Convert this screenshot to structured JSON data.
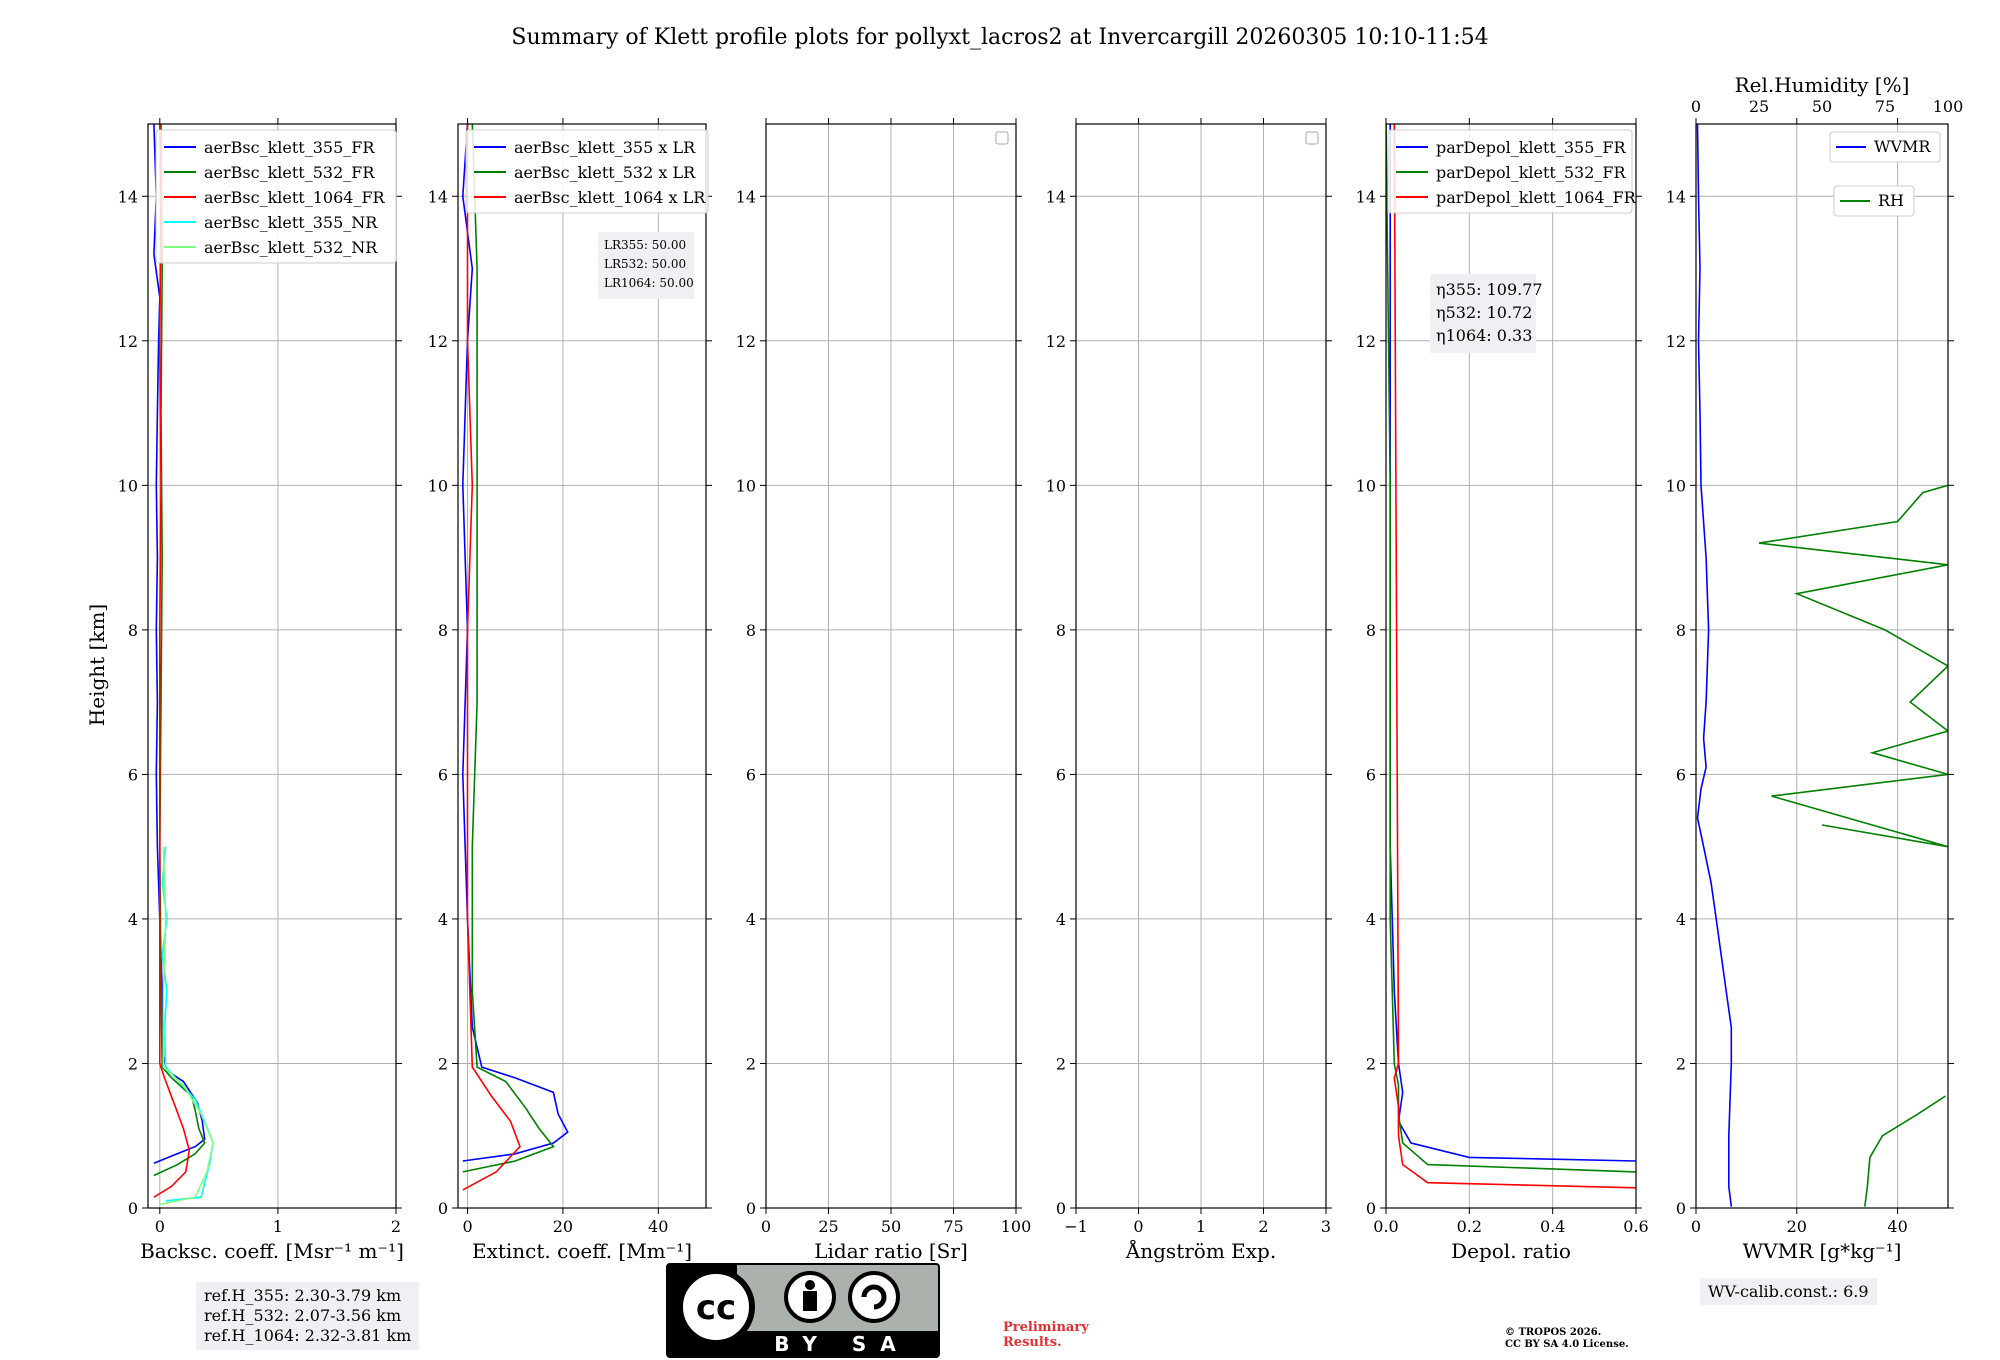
{
  "title": "Summary of Klett profile plots for pollyxt_lacros2 at Invercargill 20260305 10:10-11:54",
  "y_axis": {
    "label": "Height [km]",
    "range": [
      0,
      15
    ],
    "ticks": [
      "0",
      "2",
      "4",
      "6",
      "8",
      "10",
      "12",
      "14"
    ]
  },
  "chart_data": [
    {
      "type": "line",
      "xlabel": "Backsc. coeff. [Msr⁻¹ m⁻¹]",
      "xlim": [
        -0.1,
        2
      ],
      "xticks": [
        "0",
        "1",
        "2"
      ],
      "legend": [
        "aerBsc_klett_355_FR",
        "aerBsc_klett_532_FR",
        "aerBsc_klett_1064_FR",
        "aerBsc_klett_355_NR",
        "aerBsc_klett_532_NR"
      ],
      "series": [
        {
          "name": "aerBsc_klett_355_FR",
          "color": "#0000ff",
          "points": [
            [
              -0.05,
              0.62
            ],
            [
              0.1,
              0.72
            ],
            [
              0.3,
              0.85
            ],
            [
              0.38,
              0.95
            ],
            [
              0.36,
              1.2
            ],
            [
              0.32,
              1.45
            ],
            [
              0.2,
              1.75
            ],
            [
              0.06,
              1.9
            ],
            [
              0.03,
              2.1
            ],
            [
              0.02,
              3
            ],
            [
              0.0,
              4
            ],
            [
              -0.02,
              5
            ],
            [
              -0.03,
              6
            ],
            [
              -0.02,
              7
            ],
            [
              -0.03,
              8
            ],
            [
              -0.02,
              9
            ],
            [
              -0.03,
              10
            ],
            [
              -0.02,
              11
            ],
            [
              -0.01,
              12
            ],
            [
              0.0,
              12.6
            ],
            [
              -0.05,
              13.2
            ],
            [
              -0.03,
              14
            ],
            [
              -0.05,
              15
            ]
          ]
        },
        {
          "name": "aerBsc_klett_532_FR",
          "color": "#008000",
          "points": [
            [
              -0.05,
              0.45
            ],
            [
              0.15,
              0.6
            ],
            [
              0.3,
              0.75
            ],
            [
              0.38,
              0.9
            ],
            [
              0.33,
              1.1
            ],
            [
              0.3,
              1.35
            ],
            [
              0.27,
              1.55
            ],
            [
              0.1,
              1.8
            ],
            [
              0.02,
              1.95
            ],
            [
              0.01,
              3
            ],
            [
              0.0,
              5
            ],
            [
              0.01,
              7
            ],
            [
              0.02,
              9
            ],
            [
              0.01,
              11
            ],
            [
              0.02,
              13
            ],
            [
              0.01,
              15
            ]
          ]
        },
        {
          "name": "aerBsc_klett_1064_FR",
          "color": "#ff0000",
          "points": [
            [
              -0.05,
              0.15
            ],
            [
              0.1,
              0.3
            ],
            [
              0.22,
              0.5
            ],
            [
              0.25,
              0.8
            ],
            [
              0.2,
              1.1
            ],
            [
              0.12,
              1.45
            ],
            [
              0.04,
              1.8
            ],
            [
              0.0,
              2.0
            ],
            [
              0.0,
              4
            ],
            [
              0.0,
              6
            ],
            [
              0.0,
              8
            ],
            [
              0.01,
              10
            ],
            [
              0.0,
              12
            ],
            [
              0.01,
              14
            ],
            [
              0.0,
              15
            ]
          ]
        },
        {
          "name": "aerBsc_klett_355_NR",
          "color": "#00ffff",
          "points": [
            [
              0.05,
              0.1
            ],
            [
              0.35,
              0.15
            ],
            [
              0.42,
              0.6
            ],
            [
              0.45,
              0.9
            ],
            [
              0.38,
              1.2
            ],
            [
              0.3,
              1.5
            ],
            [
              0.05,
              1.95
            ],
            [
              0.04,
              2.5
            ],
            [
              0.06,
              3
            ],
            [
              0.02,
              3.5
            ],
            [
              0.06,
              4
            ],
            [
              0.02,
              4.5
            ],
            [
              0.05,
              5.0
            ]
          ]
        },
        {
          "name": "aerBsc_klett_532_NR",
          "color": "#7fff7f",
          "points": [
            [
              0.0,
              0.05
            ],
            [
              0.3,
              0.15
            ],
            [
              0.4,
              0.5
            ],
            [
              0.45,
              0.9
            ],
            [
              0.35,
              1.3
            ],
            [
              0.2,
              1.7
            ],
            [
              0.03,
              1.95
            ],
            [
              0.03,
              3
            ],
            [
              0.05,
              4
            ],
            [
              0.03,
              5.0
            ]
          ]
        }
      ],
      "annotations": [
        "ref.H_355: 2.30-3.79 km",
        "ref.H_532: 2.07-3.56 km",
        "ref.H_1064: 2.32-3.81 km"
      ]
    },
    {
      "type": "line",
      "xlabel": "Extinct. coeff. [Mm⁻¹]",
      "xlim": [
        -2,
        50
      ],
      "xticks": [
        "0",
        "20",
        "40"
      ],
      "legend": [
        "aerBsc_klett_355 x LR",
        "aerBsc_klett_532 x LR",
        "aerBsc_klett_1064 x LR"
      ],
      "series": [
        {
          "name": "aerBsc_klett_355 x LR",
          "color": "#0000ff",
          "points": [
            [
              -1,
              0.65
            ],
            [
              10,
              0.75
            ],
            [
              18,
              0.9
            ],
            [
              21,
              1.05
            ],
            [
              19,
              1.3
            ],
            [
              18,
              1.6
            ],
            [
              10,
              1.8
            ],
            [
              3,
              1.95
            ],
            [
              1,
              2.5
            ],
            [
              0,
              4
            ],
            [
              -1,
              6
            ],
            [
              0,
              8
            ],
            [
              -1,
              10
            ],
            [
              0,
              12
            ],
            [
              1,
              13
            ],
            [
              -1,
              14
            ],
            [
              0,
              15
            ]
          ]
        },
        {
          "name": "aerBsc_klett_532 x LR",
          "color": "#008000",
          "points": [
            [
              -1,
              0.5
            ],
            [
              10,
              0.65
            ],
            [
              18,
              0.85
            ],
            [
              15,
              1.1
            ],
            [
              12,
              1.4
            ],
            [
              8,
              1.75
            ],
            [
              2,
              1.95
            ],
            [
              1,
              3
            ],
            [
              1,
              5
            ],
            [
              2,
              7
            ],
            [
              2,
              9
            ],
            [
              2,
              11
            ],
            [
              2,
              13
            ],
            [
              1,
              15
            ]
          ]
        },
        {
          "name": "aerBsc_klett_1064 x LR",
          "color": "#ff0000",
          "points": [
            [
              -1,
              0.25
            ],
            [
              6,
              0.5
            ],
            [
              11,
              0.85
            ],
            [
              9,
              1.2
            ],
            [
              5,
              1.55
            ],
            [
              1,
              1.95
            ],
            [
              0,
              4
            ],
            [
              0,
              6
            ],
            [
              0,
              8
            ],
            [
              1,
              10
            ],
            [
              0,
              12
            ],
            [
              0,
              14
            ],
            [
              0,
              15
            ]
          ]
        }
      ],
      "annotations": [
        "LR355: 50.00",
        "LR532: 50.00",
        "LR1064: 50.00"
      ]
    },
    {
      "type": "line",
      "xlabel": "Lidar ratio [Sr]",
      "xlim": [
        0,
        100
      ],
      "xticks": [
        "0",
        "25",
        "50",
        "75",
        "100"
      ],
      "series": []
    },
    {
      "type": "line",
      "xlabel": "Ångström Exp.",
      "xlim": [
        -1,
        3
      ],
      "xticks": [
        "−1",
        "0",
        "1",
        "2",
        "3"
      ],
      "series": []
    },
    {
      "type": "line",
      "xlabel": "Depol. ratio",
      "xlim": [
        0,
        0.6
      ],
      "xticks": [
        "0.0",
        "0.2",
        "0.4",
        "0.6"
      ],
      "legend": [
        "parDepol_klett_355_FR",
        "parDepol_klett_532_FR",
        "parDepol_klett_1064_FR"
      ],
      "series": [
        {
          "name": "parDepol_klett_355_FR",
          "color": "#0000ff",
          "points": [
            [
              0.6,
              0.65
            ],
            [
              0.2,
              0.7
            ],
            [
              0.06,
              0.9
            ],
            [
              0.03,
              1.2
            ],
            [
              0.04,
              1.6
            ],
            [
              0.03,
              2.0
            ],
            [
              0.02,
              3
            ],
            [
              0.01,
              5
            ],
            [
              0.01,
              7
            ],
            [
              0.01,
              10
            ],
            [
              0.01,
              13
            ],
            [
              0.01,
              15
            ]
          ]
        },
        {
          "name": "parDepol_klett_532_FR",
          "color": "#008000",
          "points": [
            [
              0.6,
              0.5
            ],
            [
              0.1,
              0.6
            ],
            [
              0.04,
              0.9
            ],
            [
              0.03,
              1.3
            ],
            [
              0.03,
              1.7
            ],
            [
              0.02,
              2.0
            ],
            [
              0.01,
              4
            ],
            [
              0.01,
              6
            ],
            [
              0.01,
              8
            ],
            [
              0.01,
              10
            ],
            [
              0.0,
              15
            ]
          ]
        },
        {
          "name": "parDepol_klett_1064_FR",
          "color": "#ff0000",
          "points": [
            [
              0.6,
              0.28
            ],
            [
              0.1,
              0.35
            ],
            [
              0.04,
              0.6
            ],
            [
              0.03,
              1.0
            ],
            [
              0.03,
              1.4
            ],
            [
              0.02,
              1.8
            ],
            [
              0.03,
              2.0
            ],
            [
              0.02,
              15
            ]
          ]
        }
      ],
      "annotations": [
        "η355: 109.77",
        "η532: 10.72",
        "η1064: 0.33"
      ]
    },
    {
      "type": "line",
      "xlabel": "WVMR [g*kg⁻¹]",
      "xlim": [
        0,
        50
      ],
      "xticks": [
        "0",
        "20",
        "40"
      ],
      "top_axis": {
        "label": "Rel.Humidity [%]",
        "range": [
          0,
          100
        ],
        "ticks": [
          "0",
          "25",
          "50",
          "75",
          "100"
        ]
      },
      "legend": [
        "WVMR",
        "RH"
      ],
      "series": [
        {
          "name": "WVMR",
          "color": "#0000ff",
          "points": [
            [
              7,
              0.02
            ],
            [
              6.5,
              0.3
            ],
            [
              6.5,
              1
            ],
            [
              7,
              2
            ],
            [
              7,
              2.5
            ],
            [
              6,
              3
            ],
            [
              5,
              3.5
            ],
            [
              4,
              4
            ],
            [
              3,
              4.5
            ],
            [
              1.5,
              5
            ],
            [
              0.3,
              5.4
            ],
            [
              1,
              5.8
            ],
            [
              2,
              6.1
            ],
            [
              1.5,
              6.5
            ],
            [
              2,
              7
            ],
            [
              2.5,
              8
            ],
            [
              2,
              9
            ],
            [
              1,
              10
            ],
            [
              0.8,
              11
            ],
            [
              0.5,
              12
            ],
            [
              0.8,
              13
            ],
            [
              0.5,
              14
            ],
            [
              0.3,
              15
            ]
          ]
        },
        {
          "name": "RH",
          "color": "#008000",
          "x_axis": "top",
          "points": [
            [
              67,
              0.02
            ],
            [
              68,
              0.3
            ],
            [
              69,
              0.7
            ],
            [
              74,
              1
            ],
            [
              88,
              1.3
            ],
            [
              99,
              1.55
            ]
          ]
        },
        {
          "name": "RH_upper",
          "color": "#008000",
          "x_axis": "top",
          "points": [
            [
              50,
              5.3
            ],
            [
              100,
              5.0
            ],
            [
              30,
              5.7
            ],
            [
              100,
              6.0
            ],
            [
              70,
              6.3
            ],
            [
              100,
              6.6
            ],
            [
              85,
              7.0
            ],
            [
              100,
              7.5
            ],
            [
              75,
              8.0
            ],
            [
              40,
              8.5
            ],
            [
              100,
              8.9
            ],
            [
              25,
              9.2
            ],
            [
              80,
              9.5
            ],
            [
              90,
              9.9
            ],
            [
              100,
              10.0
            ]
          ]
        }
      ],
      "annotations": [
        "WV-calib.const.: 6.9"
      ]
    }
  ],
  "footer": {
    "license_badge": "BY SA",
    "preliminary": "Preliminary\nResults.",
    "tropos_line1": "© TROPOS 2026.",
    "tropos_line2": "CC BY SA 4.0 License."
  },
  "colors": {
    "c355": "#0000ff",
    "c532": "#008000",
    "c1064": "#ff0000",
    "c355nr": "#00ffff",
    "c532nr": "#7fff7f"
  }
}
